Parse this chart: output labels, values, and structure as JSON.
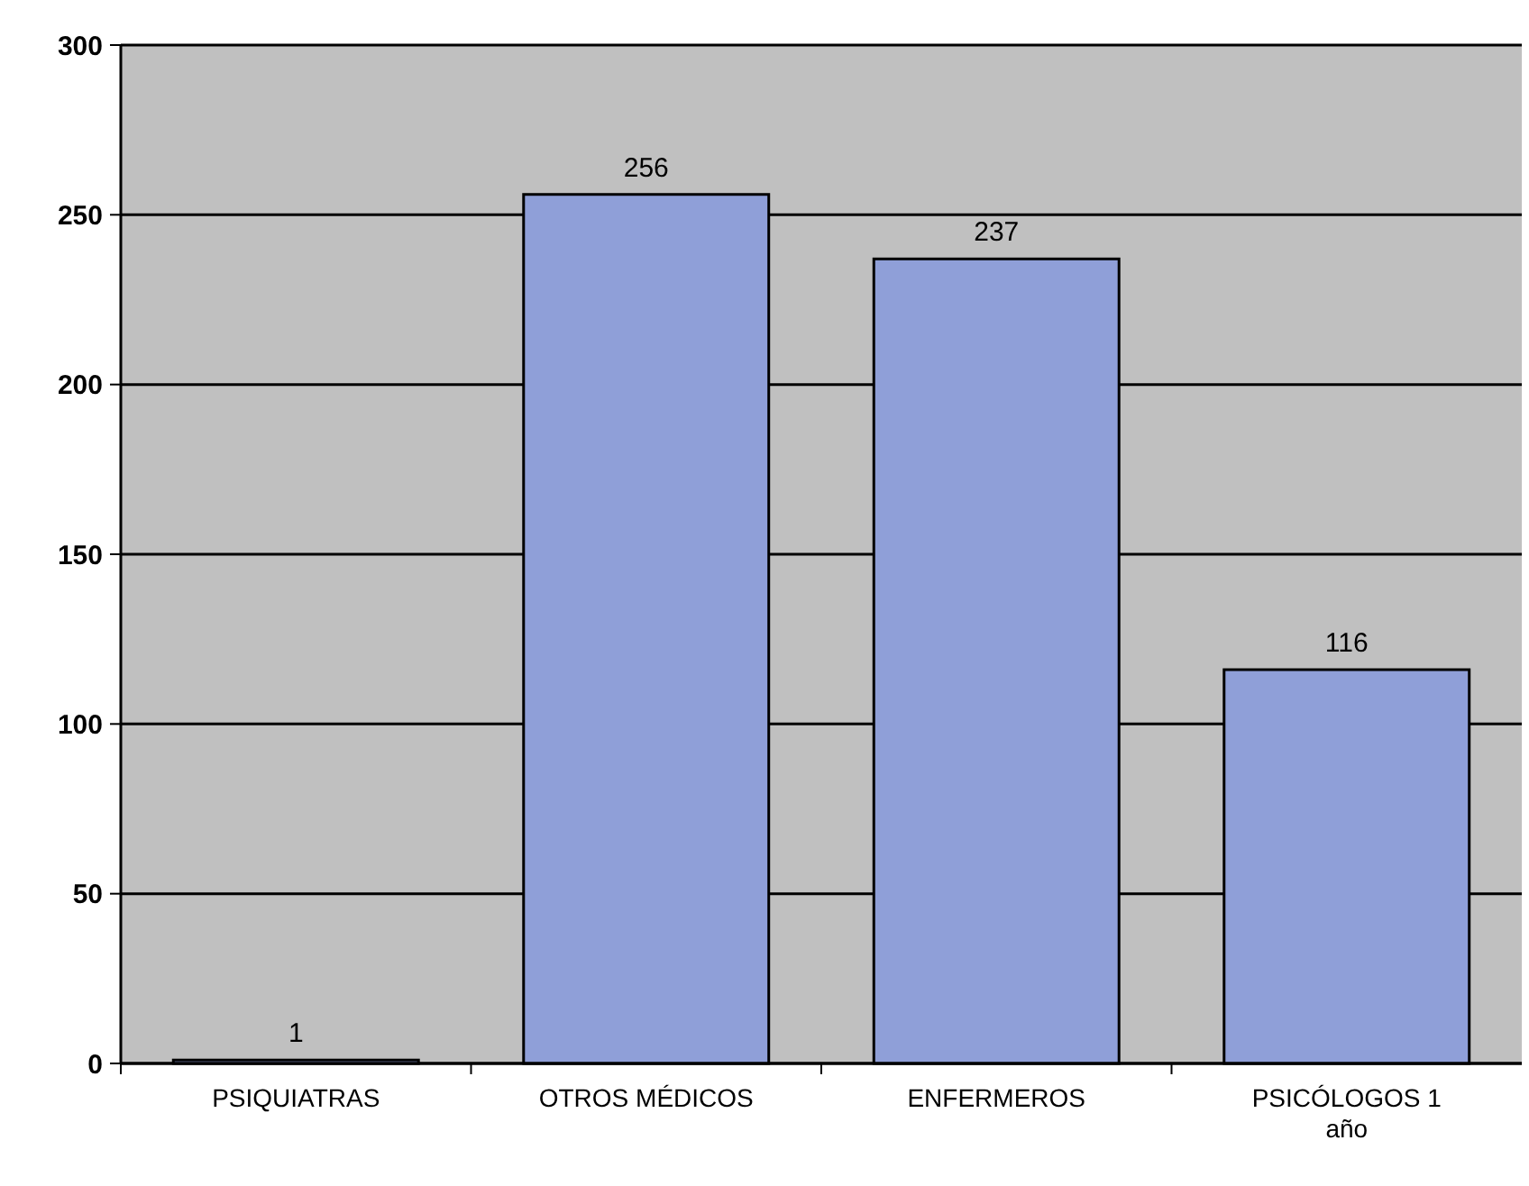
{
  "chart_data": {
    "type": "bar",
    "categories": [
      "PSIQUIATRAS",
      "OTROS MÉDICOS",
      "ENFERMEROS",
      "PSICÓLOGOS 1 año"
    ],
    "values": [
      1,
      256,
      237,
      116
    ],
    "color": "#8f9fd8",
    "ylim": [
      0,
      300
    ],
    "yticks": [
      0,
      50,
      100,
      150,
      200,
      250,
      300
    ],
    "grid": "y",
    "data_labels": true
  }
}
